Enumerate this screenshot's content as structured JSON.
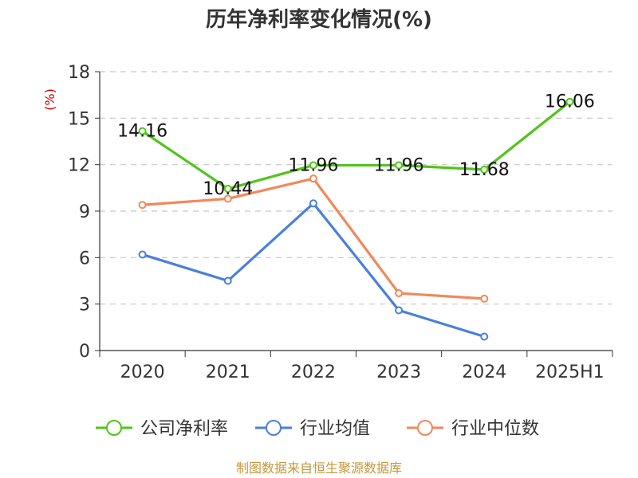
{
  "chart_data": {
    "type": "line",
    "title": "历年净利率变化情况(%)",
    "ylabel": "(%)",
    "categories": [
      "2020",
      "2021",
      "2022",
      "2023",
      "2024",
      "2025H1"
    ],
    "y_ticks": [
      "0",
      "3",
      "6",
      "9",
      "12",
      "15",
      "18"
    ],
    "ylim": [
      0,
      18
    ],
    "grid": "horizontal dashed",
    "legend_position": "bottom",
    "series": [
      {
        "name": "公司净利率",
        "color": "#52c41a",
        "values": [
          14.16,
          10.44,
          11.96,
          11.96,
          11.68,
          16.06
        ],
        "labels": [
          "14.16",
          "10.44",
          "11.96",
          "11.96",
          "11.68",
          "16.06"
        ]
      },
      {
        "name": "行业均值",
        "color": "#4a7fdc",
        "values": [
          6.2,
          4.5,
          9.5,
          2.6,
          0.9,
          null
        ]
      },
      {
        "name": "行业中位数",
        "color": "#f0885a",
        "values": [
          9.4,
          9.8,
          11.1,
          3.7,
          3.35,
          null
        ]
      }
    ]
  },
  "source": "制图数据来自恒生聚源数据库"
}
